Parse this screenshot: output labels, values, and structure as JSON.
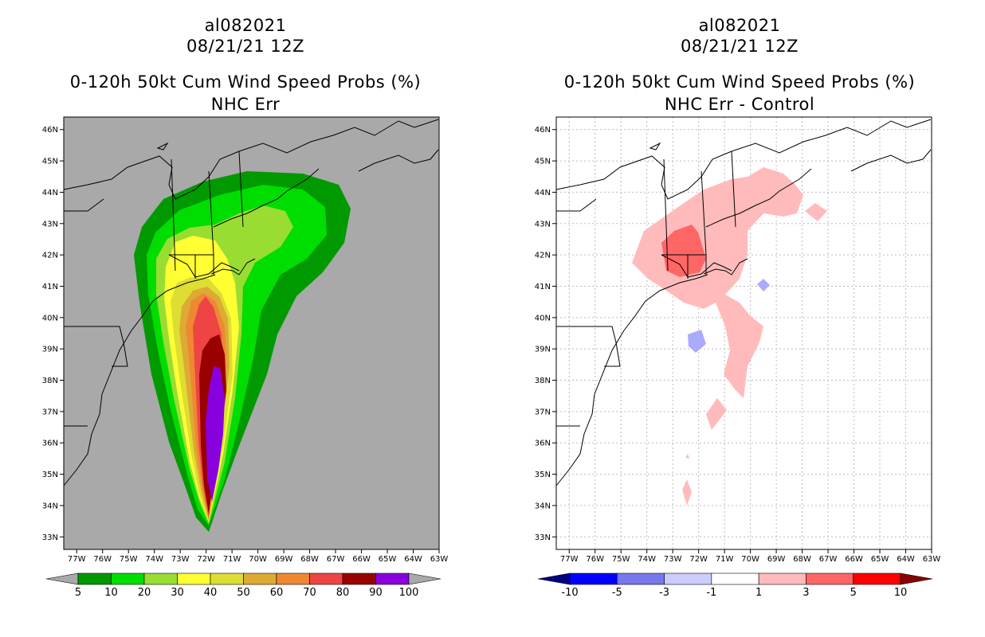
{
  "left_panel": {
    "storm_id": "al082021",
    "datetime": "08/21/21 12Z",
    "product": "0-120h 50kt Cum Wind Speed Probs (%)",
    "subtitle": "NHC Err",
    "lat_labels": [
      "46N",
      "45N",
      "44N",
      "43N",
      "42N",
      "41N",
      "40N",
      "39N",
      "38N",
      "37N",
      "36N",
      "35N",
      "34N",
      "33N"
    ],
    "lon_labels": [
      "77W",
      "76W",
      "75W",
      "74W",
      "73W",
      "72W",
      "71W",
      "70W",
      "69W",
      "68W",
      "67W",
      "66W",
      "65W",
      "64W",
      "63W"
    ],
    "background_color": "#a9a9a9",
    "colorbar": {
      "colors": [
        "#a9a9a9",
        "#009900",
        "#00dd00",
        "#99dd33",
        "#ffff33",
        "#dddd33",
        "#ddaa33",
        "#ee8833",
        "#ee4444",
        "#990000",
        "#8800dd",
        "#a9a9a9"
      ],
      "labels": [
        "5",
        "10",
        "20",
        "30",
        "40",
        "50",
        "60",
        "70",
        "80",
        "90",
        "100"
      ]
    }
  },
  "right_panel": {
    "storm_id": "al082021",
    "datetime": "08/21/21 12Z",
    "product": "0-120h 50kt Cum Wind Speed Probs (%)",
    "subtitle": "NHC Err - Control",
    "lat_labels": [
      "46N",
      "45N",
      "44N",
      "43N",
      "42N",
      "41N",
      "40N",
      "39N",
      "38N",
      "37N",
      "36N",
      "35N",
      "34N",
      "33N"
    ],
    "lon_labels": [
      "77W",
      "76W",
      "75W",
      "74W",
      "73W",
      "72W",
      "71W",
      "70W",
      "69W",
      "68W",
      "67W",
      "66W",
      "65W",
      "64W",
      "63W"
    ],
    "background_color": "#ffffff",
    "colorbar": {
      "colors": [
        "#000080",
        "#0000ff",
        "#7777ee",
        "#ccccff",
        "#ffffff",
        "#ffbbbb",
        "#ff6666",
        "#ff0000",
        "#880000"
      ],
      "labels": [
        "-10",
        "-5",
        "-3",
        "-1",
        "1",
        "3",
        "5",
        "10"
      ]
    }
  }
}
